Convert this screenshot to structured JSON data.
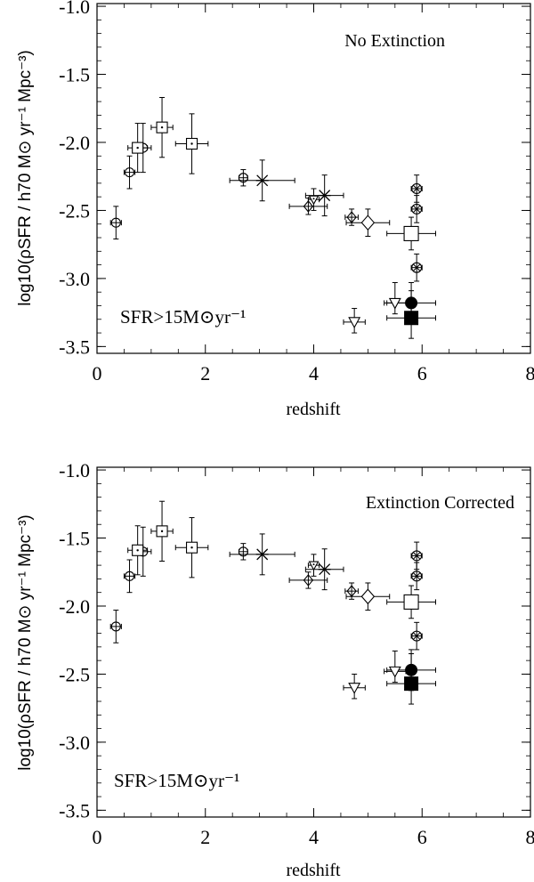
{
  "chart_data": [
    {
      "type": "scatter",
      "title": "No Extinction",
      "annotation": "SFR>15M⊙yr⁻¹",
      "xlabel": "redshift",
      "ylabel": "log10(ρSFR / h70 M⊙ yr⁻¹ Mpc⁻³)",
      "xlim": [
        0,
        8
      ],
      "ylim": [
        -3.55,
        -0.98
      ],
      "xticks": [
        0,
        2,
        4,
        6,
        8
      ],
      "yticks": [
        -1.0,
        -1.5,
        -2.0,
        -2.5,
        -3.0,
        -3.5
      ],
      "grid": false,
      "points": [
        {
          "marker": "circle-cross",
          "x": 0.35,
          "y": -2.59,
          "xerr": [
            0.1,
            0.1
          ],
          "yerr": [
            0.12,
            0.12
          ]
        },
        {
          "marker": "circle-cross",
          "x": 0.6,
          "y": -2.22,
          "xerr": [
            0.1,
            0.1
          ],
          "yerr": [
            0.12,
            0.12
          ]
        },
        {
          "marker": "circle-cross",
          "x": 0.85,
          "y": -2.04,
          "xerr": [
            0.15,
            0.15
          ],
          "yerr": [
            0.18,
            0.18
          ]
        },
        {
          "marker": "square-dot",
          "x": 0.75,
          "y": -2.04,
          "xerr": [
            0.18,
            0.18
          ],
          "yerr": [
            0.18,
            0.18
          ]
        },
        {
          "marker": "square-dot",
          "x": 1.2,
          "y": -1.89,
          "xerr": [
            0.2,
            0.2
          ],
          "yerr": [
            0.22,
            0.22
          ]
        },
        {
          "marker": "square-dot",
          "x": 1.75,
          "y": -2.01,
          "xerr": [
            0.3,
            0.3
          ],
          "yerr": [
            0.22,
            0.22
          ]
        },
        {
          "marker": "circle-cross",
          "x": 2.7,
          "y": -2.26,
          "xerr": [
            0.08,
            0.08
          ],
          "yerr": [
            0.06,
            0.06
          ]
        },
        {
          "marker": "asterisk",
          "x": 3.05,
          "y": -2.28,
          "xerr": [
            0.6,
            0.6
          ],
          "yerr": [
            0.15,
            0.15
          ]
        },
        {
          "marker": "diamond-cross",
          "x": 3.9,
          "y": -2.47,
          "xerr": [
            0.35,
            0.35
          ],
          "yerr": [
            0.06,
            0.06
          ]
        },
        {
          "marker": "triangle-dot",
          "x": 4.0,
          "y": -2.42,
          "xerr": [
            0.1,
            0.1
          ],
          "yerr": [
            0.08,
            0.08
          ]
        },
        {
          "marker": "asterisk",
          "x": 4.2,
          "y": -2.39,
          "xerr": [
            0.35,
            0.35
          ],
          "yerr": [
            0.15,
            0.15
          ]
        },
        {
          "marker": "diamond-cross",
          "x": 4.7,
          "y": -2.55,
          "xerr": [
            0.12,
            0.12
          ],
          "yerr": [
            0.06,
            0.06
          ]
        },
        {
          "marker": "diamond",
          "x": 5.0,
          "y": -2.59,
          "xerr": [
            0.4,
            0.4
          ],
          "yerr": [
            0.1,
            0.1
          ]
        },
        {
          "marker": "circle-star",
          "x": 5.9,
          "y": -2.34,
          "xerr": [
            0.1,
            0.1
          ],
          "yerr": [
            0.1,
            0.1
          ]
        },
        {
          "marker": "circle-star",
          "x": 5.9,
          "y": -2.49,
          "xerr": [
            0.1,
            0.1
          ],
          "yerr": [
            0.1,
            0.1
          ]
        },
        {
          "marker": "square",
          "x": 5.8,
          "y": -2.67,
          "xerr": [
            0.45,
            0.45
          ],
          "yerr": [
            0.12,
            0.12
          ]
        },
        {
          "marker": "circle-star",
          "x": 5.9,
          "y": -2.92,
          "xerr": [
            0.1,
            0.1
          ],
          "yerr": [
            0.1,
            0.1
          ]
        },
        {
          "marker": "circle-filled",
          "x": 5.8,
          "y": -3.18,
          "xerr": [
            0.45,
            0.45
          ],
          "yerr": [
            0.15,
            0.15
          ]
        },
        {
          "marker": "triangle-down",
          "x": 5.5,
          "y": -3.18,
          "xerr": [
            0.2,
            0.2
          ],
          "yerr": [
            0.08,
            0.15
          ]
        },
        {
          "marker": "triangle-down",
          "x": 4.75,
          "y": -3.32,
          "xerr": [
            0.2,
            0.2
          ],
          "yerr": [
            0.08,
            0.1
          ]
        },
        {
          "marker": "square-filled",
          "x": 5.8,
          "y": -3.29,
          "xerr": [
            0.45,
            0.45
          ],
          "yerr": [
            0.15,
            0.2
          ]
        }
      ]
    },
    {
      "type": "scatter",
      "title": "Extinction Corrected",
      "annotation": "SFR>15M⊙yr⁻¹",
      "xlabel": "redshift",
      "ylabel": "log10(ρSFR / h70 M⊙ yr⁻¹ Mpc⁻³)",
      "xlim": [
        0,
        8
      ],
      "ylim": [
        -3.55,
        -0.98
      ],
      "xticks": [
        0,
        2,
        4,
        6,
        8
      ],
      "yticks": [
        -1.0,
        -1.5,
        -2.0,
        -2.5,
        -3.0,
        -3.5
      ],
      "grid": false,
      "points": [
        {
          "marker": "circle-cross",
          "x": 0.35,
          "y": -2.15,
          "xerr": [
            0.1,
            0.1
          ],
          "yerr": [
            0.12,
            0.12
          ]
        },
        {
          "marker": "circle-cross",
          "x": 0.6,
          "y": -1.78,
          "xerr": [
            0.1,
            0.1
          ],
          "yerr": [
            0.12,
            0.12
          ]
        },
        {
          "marker": "circle-cross",
          "x": 0.85,
          "y": -1.6,
          "xerr": [
            0.15,
            0.15
          ],
          "yerr": [
            0.18,
            0.18
          ]
        },
        {
          "marker": "square-dot",
          "x": 0.75,
          "y": -1.59,
          "xerr": [
            0.18,
            0.18
          ],
          "yerr": [
            0.18,
            0.18
          ]
        },
        {
          "marker": "square-dot",
          "x": 1.2,
          "y": -1.45,
          "xerr": [
            0.2,
            0.2
          ],
          "yerr": [
            0.22,
            0.22
          ]
        },
        {
          "marker": "square-dot",
          "x": 1.75,
          "y": -1.57,
          "xerr": [
            0.3,
            0.3
          ],
          "yerr": [
            0.22,
            0.22
          ]
        },
        {
          "marker": "circle-cross",
          "x": 2.7,
          "y": -1.6,
          "xerr": [
            0.08,
            0.08
          ],
          "yerr": [
            0.06,
            0.06
          ]
        },
        {
          "marker": "asterisk",
          "x": 3.05,
          "y": -1.62,
          "xerr": [
            0.6,
            0.6
          ],
          "yerr": [
            0.15,
            0.15
          ]
        },
        {
          "marker": "diamond-cross",
          "x": 3.9,
          "y": -1.81,
          "xerr": [
            0.35,
            0.35
          ],
          "yerr": [
            0.06,
            0.06
          ]
        },
        {
          "marker": "triangle-dot",
          "x": 4.0,
          "y": -1.7,
          "xerr": [
            0.1,
            0.1
          ],
          "yerr": [
            0.08,
            0.08
          ]
        },
        {
          "marker": "asterisk",
          "x": 4.2,
          "y": -1.73,
          "xerr": [
            0.35,
            0.35
          ],
          "yerr": [
            0.15,
            0.15
          ]
        },
        {
          "marker": "diamond-cross",
          "x": 4.7,
          "y": -1.89,
          "xerr": [
            0.12,
            0.12
          ],
          "yerr": [
            0.06,
            0.06
          ]
        },
        {
          "marker": "diamond",
          "x": 5.0,
          "y": -1.93,
          "xerr": [
            0.4,
            0.4
          ],
          "yerr": [
            0.1,
            0.1
          ]
        },
        {
          "marker": "circle-star",
          "x": 5.9,
          "y": -1.63,
          "xerr": [
            0.1,
            0.1
          ],
          "yerr": [
            0.1,
            0.1
          ]
        },
        {
          "marker": "circle-star",
          "x": 5.9,
          "y": -1.78,
          "xerr": [
            0.1,
            0.1
          ],
          "yerr": [
            0.1,
            0.1
          ]
        },
        {
          "marker": "square",
          "x": 5.8,
          "y": -1.97,
          "xerr": [
            0.45,
            0.45
          ],
          "yerr": [
            0.12,
            0.12
          ]
        },
        {
          "marker": "circle-star",
          "x": 5.9,
          "y": -2.22,
          "xerr": [
            0.1,
            0.1
          ],
          "yerr": [
            0.1,
            0.1
          ]
        },
        {
          "marker": "circle-filled",
          "x": 5.8,
          "y": -2.47,
          "xerr": [
            0.45,
            0.45
          ],
          "yerr": [
            0.15,
            0.15
          ]
        },
        {
          "marker": "triangle-down",
          "x": 5.5,
          "y": -2.48,
          "xerr": [
            0.2,
            0.2
          ],
          "yerr": [
            0.08,
            0.15
          ]
        },
        {
          "marker": "triangle-down",
          "x": 4.75,
          "y": -2.6,
          "xerr": [
            0.2,
            0.2
          ],
          "yerr": [
            0.08,
            0.1
          ]
        },
        {
          "marker": "square-filled",
          "x": 5.8,
          "y": -2.57,
          "xerr": [
            0.45,
            0.45
          ],
          "yerr": [
            0.15,
            0.22
          ]
        }
      ]
    }
  ]
}
